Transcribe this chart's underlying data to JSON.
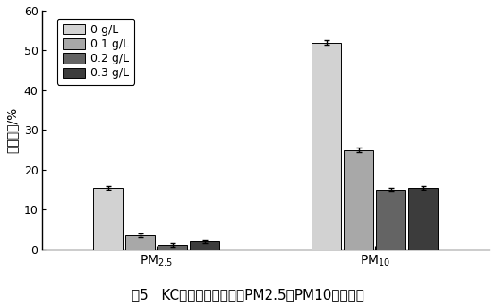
{
  "groups": [
    "PM$_{2.5}$",
    "PM$_{10}$"
  ],
  "series_labels": [
    "0 g/L",
    "0.1 g/L",
    "0.2 g/L",
    "0.3 g/L"
  ],
  "values": [
    [
      15.5,
      3.5,
      1.0,
      2.0
    ],
    [
      52.0,
      25.0,
      15.0,
      15.5
    ]
  ],
  "errors": [
    [
      0.5,
      0.4,
      0.4,
      0.4
    ],
    [
      0.6,
      0.6,
      0.5,
      0.5
    ]
  ],
  "bar_colors": [
    "#d2d2d2",
    "#a8a8a8",
    "#646464",
    "#3c3c3c"
  ],
  "bar_edge_color": "#000000",
  "ylabel": "体积分数/%",
  "ylim": [
    0,
    60
  ],
  "yticks": [
    0,
    10,
    20,
    30,
    40,
    50,
    60
  ],
  "caption": "图5   KC的含量对飞灰中的PM2.5、PM10含量影响",
  "background_color": "#ffffff",
  "bar_width": 0.06,
  "bar_gap": 0.005,
  "group_centers": [
    0.28,
    0.72
  ],
  "xlim": [
    0.05,
    0.95
  ],
  "legend_fontsize": 9,
  "axis_fontsize": 10,
  "caption_fontsize": 11,
  "tick_fontsize": 9
}
